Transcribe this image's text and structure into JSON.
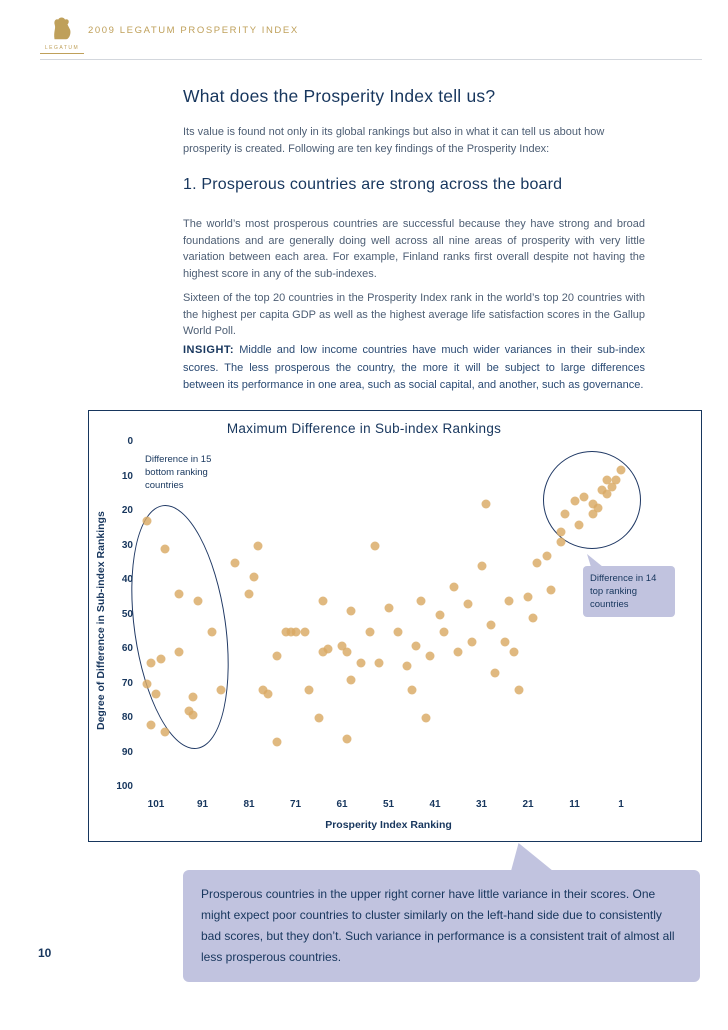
{
  "page": {
    "number": "10"
  },
  "header": {
    "title": "2009 LEGATUM PROSPERITY INDEX",
    "logo_text": "LEGATUM"
  },
  "article": {
    "heading": "What does the Prosperity Index tell us?",
    "intro": "Its value is found not only in its global rankings but also in what it can tell us about how prosperity is created. Following are ten key findings of the Prosperity Index:",
    "section_heading": "1. Prosperous countries are strong across the board",
    "para1": "The world’s most prosperous countries are successful because they have strong and broad foundations and are generally doing well across all nine areas of prosperity with very little variation between each area. For example, Finland ranks first overall despite not having the highest score in any of the sub-indexes.",
    "para2": "Sixteen of the top 20 countries in the Prosperity Index rank in the world’s top 20 countries with the highest per capita GDP as well as the highest average life satisfaction scores in the Gallup World Poll.",
    "insight_label": "INSIGHT:",
    "insight_text": "Middle and low income countries have much wider variances in their sub-index scores. The less prosperous the country, the more it will be subject to large differences between its performance in one area, such as social capital, and another, such as governance."
  },
  "chart": {
    "title": "Maximum Difference in Sub-index Rankings",
    "xlabel": "Prosperity Index Ranking",
    "ylabel": "Degree of Difference in Sub-index Rankings",
    "annotation_bottom_countries": "Difference in 15 bottom ranking countries",
    "annotation_top_countries": "Difference in 14 top ranking countries"
  },
  "chart_data": {
    "type": "scatter",
    "title": "Maximum Difference in Sub-index Rankings",
    "xlabel": "Prosperity Index Ranking",
    "ylabel": "Degree of Difference in Sub-index Rankings",
    "x_ticks": [
      101,
      91,
      81,
      71,
      61,
      51,
      41,
      31,
      21,
      11,
      1
    ],
    "y_ticks": [
      0,
      10,
      20,
      30,
      40,
      50,
      60,
      70,
      80,
      90,
      100
    ],
    "x_axis_reversed": true,
    "y_axis_reversed": true,
    "grid": false,
    "point_color": "#D9A964",
    "points": [
      [
        103,
        23
      ],
      [
        99,
        31
      ],
      [
        96,
        44
      ],
      [
        92,
        46
      ],
      [
        102,
        64
      ],
      [
        100,
        63
      ],
      [
        96,
        61
      ],
      [
        103,
        70
      ],
      [
        101,
        73
      ],
      [
        99,
        84
      ],
      [
        102,
        82
      ],
      [
        94,
        78
      ],
      [
        93,
        79
      ],
      [
        93,
        74
      ],
      [
        89,
        55
      ],
      [
        87,
        72
      ],
      [
        84,
        35
      ],
      [
        81,
        44
      ],
      [
        80,
        39
      ],
      [
        79,
        30
      ],
      [
        78,
        72
      ],
      [
        77,
        73
      ],
      [
        75,
        62
      ],
      [
        75,
        87
      ],
      [
        73,
        55
      ],
      [
        72,
        55
      ],
      [
        71,
        55
      ],
      [
        69,
        55
      ],
      [
        68,
        72
      ],
      [
        66,
        80
      ],
      [
        65,
        61
      ],
      [
        65,
        46
      ],
      [
        64,
        60
      ],
      [
        61,
        59
      ],
      [
        60,
        61
      ],
      [
        60,
        86
      ],
      [
        59,
        69
      ],
      [
        59,
        49
      ],
      [
        57,
        64
      ],
      [
        55,
        55
      ],
      [
        54,
        30
      ],
      [
        53,
        64
      ],
      [
        51,
        48
      ],
      [
        49,
        55
      ],
      [
        47,
        65
      ],
      [
        46,
        72
      ],
      [
        45,
        59
      ],
      [
        44,
        46
      ],
      [
        43,
        80
      ],
      [
        42,
        62
      ],
      [
        40,
        50
      ],
      [
        39,
        55
      ],
      [
        37,
        42
      ],
      [
        36,
        61
      ],
      [
        34,
        47
      ],
      [
        33,
        58
      ],
      [
        31,
        36
      ],
      [
        30,
        18
      ],
      [
        29,
        53
      ],
      [
        28,
        67
      ],
      [
        26,
        58
      ],
      [
        25,
        46
      ],
      [
        24,
        61
      ],
      [
        23,
        72
      ],
      [
        21,
        45
      ],
      [
        20,
        51
      ],
      [
        19,
        35
      ],
      [
        17,
        33
      ],
      [
        16,
        43
      ],
      [
        14,
        29
      ],
      [
        14,
        26
      ],
      [
        13,
        21
      ],
      [
        11,
        17
      ],
      [
        10,
        24
      ],
      [
        9,
        16
      ],
      [
        7,
        18
      ],
      [
        7,
        21
      ],
      [
        6,
        19
      ],
      [
        5,
        14
      ],
      [
        4,
        15
      ],
      [
        4,
        11
      ],
      [
        3,
        13
      ],
      [
        2,
        11
      ],
      [
        1,
        8
      ]
    ]
  },
  "callout": {
    "text": "Prosperous countries in the upper right corner have little variance in their scores. One might expect poor countries to cluster similarly on the left-hand side due to consistently bad scores, but they don’t. Such variance in performance is a consistent trait of almost all less prosperous countries."
  },
  "colors": {
    "navy": "#17365D",
    "gold": "#BFA05A",
    "body_text": "#4D5E74",
    "lavender": "#C1C3DF",
    "dot": "#D9A964"
  }
}
